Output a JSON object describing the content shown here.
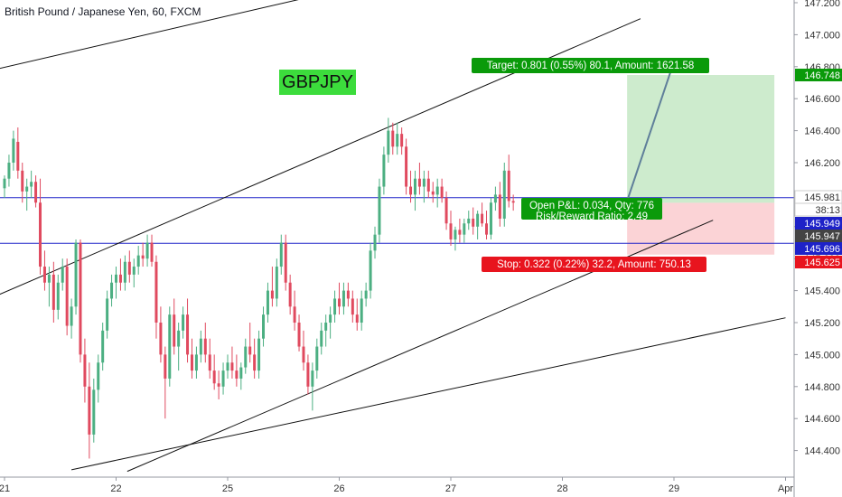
{
  "header": {
    "title": "British Pound / Japanese Yen, 60, FXCM"
  },
  "symbol_label": "GBPJPY",
  "colors": {
    "up": "#4caf82",
    "down": "#e04a5f",
    "grid_line": "#1e22c8",
    "trend_line": "#111111",
    "target_zone": "#cdebcd",
    "stop_zone": "#fbd3d6",
    "target_badge": "#0a9a0a",
    "stop_badge": "#e8141e",
    "price_badge_green": "#0a9a0a",
    "price_badge_blue": "#1e22c8",
    "price_badge_red": "#e8141e",
    "price_badge_dark": "#444444",
    "symbol_box": "#3cdc3c"
  },
  "chart_data": {
    "type": "candlestick",
    "title": "British Pound / Japanese Yen, 60, FXCM",
    "y_axis": {
      "ticks": [
        "147.200",
        "147.000",
        "146.800",
        "146.600",
        "146.400",
        "146.200",
        "146.000",
        "145.800",
        "145.600",
        "145.400",
        "145.200",
        "145.000",
        "144.800",
        "144.600",
        "144.400"
      ],
      "ylim": [
        144.26,
        147.24
      ],
      "scale": "linear"
    },
    "x_axis": {
      "ticks": [
        "21",
        "22",
        "25",
        "26",
        "27",
        "28",
        "29",
        "Apr"
      ]
    },
    "price_badges": [
      {
        "label": "146.748",
        "price": 146.748,
        "style": "green"
      },
      {
        "label": "145.981",
        "price": 145.981,
        "style": "white"
      },
      {
        "label": "38:13",
        "price": 145.981,
        "style": "white_offset"
      },
      {
        "label": "145.949",
        "price": 145.949,
        "style": "blue"
      },
      {
        "label": "145.947",
        "price": 145.947,
        "style": "dark"
      },
      {
        "label": "145.696",
        "price": 145.696,
        "style": "blue"
      },
      {
        "label": "145.625",
        "price": 145.625,
        "style": "red"
      }
    ],
    "horizontal_lines": [
      {
        "price": 145.981
      },
      {
        "price": 145.696
      }
    ],
    "trend_lines": [
      {
        "from": {
          "t": -0.1,
          "p": 146.78
        },
        "to": {
          "t": 2.7,
          "p": 147.23
        }
      },
      {
        "from": {
          "t": -0.1,
          "p": 145.36
        },
        "to": {
          "t": 5.7,
          "p": 147.1
        }
      },
      {
        "from": {
          "t": 1.1,
          "p": 144.27
        },
        "to": {
          "t": 6.35,
          "p": 145.84
        }
      },
      {
        "from": {
          "t": 0.6,
          "p": 144.28
        },
        "to": {
          "t": 7.0,
          "p": 145.23
        }
      }
    ],
    "position": {
      "type": "long",
      "entry_price": 145.949,
      "target_price": 146.748,
      "stop_price": 145.625,
      "start_t": 5.58,
      "end_t": 6.9,
      "target_label": "Target: 0.801 (0.55%) 80.1, Amount: 1621.58",
      "stop_label": "Stop: 0.322 (0.22%) 32.2, Amount: 750.13",
      "pnl_label": "Open P&L: 0.034, Qty: 776",
      "rr_label": "Risk/Reward Ratio: 2.49"
    },
    "projection_line": {
      "from": {
        "t": 5.58,
        "p": 145.96
      },
      "to": {
        "t": 5.98,
        "p": 146.79
      }
    },
    "candles": [
      {
        "t": 0.0,
        "o": 146.04,
        "h": 146.12,
        "l": 145.98,
        "c": 146.1
      },
      {
        "t": 0.04,
        "o": 146.1,
        "h": 146.25,
        "l": 146.05,
        "c": 146.2
      },
      {
        "t": 0.08,
        "o": 146.2,
        "h": 146.4,
        "l": 146.15,
        "c": 146.35
      },
      {
        "t": 0.12,
        "o": 146.33,
        "h": 146.42,
        "l": 146.1,
        "c": 146.15
      },
      {
        "t": 0.16,
        "o": 146.15,
        "h": 146.2,
        "l": 145.95,
        "c": 146.02
      },
      {
        "t": 0.2,
        "o": 146.02,
        "h": 146.1,
        "l": 145.9,
        "c": 146.05
      },
      {
        "t": 0.24,
        "o": 146.05,
        "h": 146.15,
        "l": 145.98,
        "c": 146.08
      },
      {
        "t": 0.28,
        "o": 146.08,
        "h": 146.12,
        "l": 145.92,
        "c": 145.95
      },
      {
        "t": 0.32,
        "o": 145.95,
        "h": 146.1,
        "l": 145.5,
        "c": 145.55
      },
      {
        "t": 0.36,
        "o": 145.55,
        "h": 145.65,
        "l": 145.4,
        "c": 145.45
      },
      {
        "t": 0.4,
        "o": 145.45,
        "h": 145.55,
        "l": 145.3,
        "c": 145.5
      },
      {
        "t": 0.44,
        "o": 145.5,
        "h": 145.58,
        "l": 145.2,
        "c": 145.28
      },
      {
        "t": 0.48,
        "o": 145.28,
        "h": 145.5,
        "l": 145.22,
        "c": 145.45
      },
      {
        "t": 0.52,
        "o": 145.45,
        "h": 145.6,
        "l": 145.4,
        "c": 145.55
      },
      {
        "t": 0.56,
        "o": 145.55,
        "h": 145.6,
        "l": 145.12,
        "c": 145.18
      },
      {
        "t": 0.6,
        "o": 145.18,
        "h": 145.35,
        "l": 145.1,
        "c": 145.3
      },
      {
        "t": 0.64,
        "o": 145.3,
        "h": 145.72,
        "l": 145.25,
        "c": 145.7
      },
      {
        "t": 0.68,
        "o": 145.7,
        "h": 145.72,
        "l": 144.95,
        "c": 145.0
      },
      {
        "t": 0.72,
        "o": 145.0,
        "h": 145.1,
        "l": 144.7,
        "c": 144.8
      },
      {
        "t": 0.76,
        "o": 144.8,
        "h": 144.95,
        "l": 144.35,
        "c": 144.5
      },
      {
        "t": 0.8,
        "o": 144.5,
        "h": 144.85,
        "l": 144.45,
        "c": 144.78
      },
      {
        "t": 0.84,
        "o": 144.78,
        "h": 145.0,
        "l": 144.7,
        "c": 144.95
      },
      {
        "t": 0.88,
        "o": 144.95,
        "h": 145.2,
        "l": 144.9,
        "c": 145.15
      },
      {
        "t": 0.92,
        "o": 145.15,
        "h": 145.4,
        "l": 145.1,
        "c": 145.35
      },
      {
        "t": 0.96,
        "o": 145.35,
        "h": 145.5,
        "l": 145.3,
        "c": 145.45
      },
      {
        "t": 1.0,
        "o": 145.45,
        "h": 145.55,
        "l": 145.35,
        "c": 145.5
      },
      {
        "t": 1.04,
        "o": 145.5,
        "h": 145.6,
        "l": 145.4,
        "c": 145.45
      },
      {
        "t": 1.08,
        "o": 145.45,
        "h": 145.62,
        "l": 145.4,
        "c": 145.58
      },
      {
        "t": 1.12,
        "o": 145.58,
        "h": 145.65,
        "l": 145.45,
        "c": 145.5
      },
      {
        "t": 1.16,
        "o": 145.5,
        "h": 145.6,
        "l": 145.42,
        "c": 145.55
      },
      {
        "t": 1.2,
        "o": 145.55,
        "h": 145.68,
        "l": 145.5,
        "c": 145.62
      },
      {
        "t": 1.24,
        "o": 145.62,
        "h": 145.7,
        "l": 145.55,
        "c": 145.6
      },
      {
        "t": 1.28,
        "o": 145.6,
        "h": 145.75,
        "l": 145.55,
        "c": 145.7
      },
      {
        "t": 1.32,
        "o": 145.7,
        "h": 145.75,
        "l": 145.55,
        "c": 145.58
      },
      {
        "t": 1.36,
        "o": 145.58,
        "h": 145.62,
        "l": 145.1,
        "c": 145.2
      },
      {
        "t": 1.4,
        "o": 145.2,
        "h": 145.3,
        "l": 144.95,
        "c": 145.0
      },
      {
        "t": 1.44,
        "o": 145.0,
        "h": 145.05,
        "l": 144.6,
        "c": 144.85
      },
      {
        "t": 1.48,
        "o": 144.85,
        "h": 145.3,
        "l": 144.8,
        "c": 145.25
      },
      {
        "t": 1.52,
        "o": 145.25,
        "h": 145.35,
        "l": 145.0,
        "c": 145.05
      },
      {
        "t": 1.56,
        "o": 145.05,
        "h": 145.2,
        "l": 144.9,
        "c": 145.15
      },
      {
        "t": 1.6,
        "o": 145.15,
        "h": 145.3,
        "l": 145.1,
        "c": 145.25
      },
      {
        "t": 1.64,
        "o": 145.25,
        "h": 145.35,
        "l": 144.95,
        "c": 145.0
      },
      {
        "t": 1.68,
        "o": 145.0,
        "h": 145.1,
        "l": 144.85,
        "c": 144.9
      },
      {
        "t": 1.72,
        "o": 144.9,
        "h": 145.05,
        "l": 144.85,
        "c": 145.0
      },
      {
        "t": 1.76,
        "o": 145.0,
        "h": 145.15,
        "l": 144.95,
        "c": 145.1
      },
      {
        "t": 1.8,
        "o": 145.1,
        "h": 145.2,
        "l": 144.95,
        "c": 145.0
      },
      {
        "t": 1.84,
        "o": 145.0,
        "h": 145.1,
        "l": 144.85,
        "c": 144.9
      },
      {
        "t": 1.88,
        "o": 144.9,
        "h": 145.0,
        "l": 144.78,
        "c": 144.82
      },
      {
        "t": 1.92,
        "o": 144.82,
        "h": 144.9,
        "l": 144.72,
        "c": 144.8
      },
      {
        "t": 1.96,
        "o": 144.8,
        "h": 144.95,
        "l": 144.75,
        "c": 144.9
      },
      {
        "t": 2.0,
        "o": 144.9,
        "h": 145.0,
        "l": 144.85,
        "c": 144.95
      },
      {
        "t": 2.04,
        "o": 144.95,
        "h": 145.05,
        "l": 144.85,
        "c": 144.9
      },
      {
        "t": 2.08,
        "o": 144.9,
        "h": 145.0,
        "l": 144.8,
        "c": 144.85
      },
      {
        "t": 2.12,
        "o": 144.85,
        "h": 144.95,
        "l": 144.78,
        "c": 144.92
      },
      {
        "t": 2.16,
        "o": 144.92,
        "h": 145.1,
        "l": 144.88,
        "c": 145.05
      },
      {
        "t": 2.2,
        "o": 145.05,
        "h": 145.2,
        "l": 144.95,
        "c": 145.0
      },
      {
        "t": 2.24,
        "o": 145.0,
        "h": 145.1,
        "l": 144.85,
        "c": 144.9
      },
      {
        "t": 2.28,
        "o": 144.9,
        "h": 145.15,
        "l": 144.85,
        "c": 145.1
      },
      {
        "t": 2.32,
        "o": 145.1,
        "h": 145.3,
        "l": 145.05,
        "c": 145.25
      },
      {
        "t": 2.36,
        "o": 145.25,
        "h": 145.45,
        "l": 145.2,
        "c": 145.4
      },
      {
        "t": 2.4,
        "o": 145.4,
        "h": 145.55,
        "l": 145.3,
        "c": 145.35
      },
      {
        "t": 2.44,
        "o": 145.35,
        "h": 145.6,
        "l": 145.3,
        "c": 145.55
      },
      {
        "t": 2.48,
        "o": 145.55,
        "h": 145.75,
        "l": 145.5,
        "c": 145.7
      },
      {
        "t": 2.52,
        "o": 145.7,
        "h": 145.75,
        "l": 145.4,
        "c": 145.45
      },
      {
        "t": 2.56,
        "o": 145.45,
        "h": 145.5,
        "l": 145.25,
        "c": 145.3
      },
      {
        "t": 2.6,
        "o": 145.3,
        "h": 145.4,
        "l": 145.15,
        "c": 145.2
      },
      {
        "t": 2.64,
        "o": 145.2,
        "h": 145.25,
        "l": 145.02,
        "c": 145.05
      },
      {
        "t": 2.68,
        "o": 145.05,
        "h": 145.15,
        "l": 144.9,
        "c": 144.95
      },
      {
        "t": 2.72,
        "o": 144.95,
        "h": 145.0,
        "l": 144.75,
        "c": 144.8
      },
      {
        "t": 2.76,
        "o": 144.8,
        "h": 144.95,
        "l": 144.65,
        "c": 144.9
      },
      {
        "t": 2.8,
        "o": 144.9,
        "h": 145.1,
        "l": 144.85,
        "c": 145.05
      },
      {
        "t": 2.84,
        "o": 145.05,
        "h": 145.2,
        "l": 145.0,
        "c": 145.15
      },
      {
        "t": 2.88,
        "o": 145.15,
        "h": 145.25,
        "l": 145.05,
        "c": 145.2
      },
      {
        "t": 2.92,
        "o": 145.2,
        "h": 145.3,
        "l": 145.1,
        "c": 145.25
      },
      {
        "t": 2.96,
        "o": 145.25,
        "h": 145.4,
        "l": 145.2,
        "c": 145.35
      },
      {
        "t": 3.0,
        "o": 145.35,
        "h": 145.45,
        "l": 145.25,
        "c": 145.3
      },
      {
        "t": 3.04,
        "o": 145.3,
        "h": 145.45,
        "l": 145.25,
        "c": 145.4
      },
      {
        "t": 3.08,
        "o": 145.4,
        "h": 145.45,
        "l": 145.3,
        "c": 145.35
      },
      {
        "t": 3.12,
        "o": 145.35,
        "h": 145.4,
        "l": 145.2,
        "c": 145.25
      },
      {
        "t": 3.16,
        "o": 145.25,
        "h": 145.35,
        "l": 145.15,
        "c": 145.2
      },
      {
        "t": 3.2,
        "o": 145.2,
        "h": 145.4,
        "l": 145.15,
        "c": 145.35
      },
      {
        "t": 3.24,
        "o": 145.35,
        "h": 145.45,
        "l": 145.3,
        "c": 145.4
      },
      {
        "t": 3.28,
        "o": 145.4,
        "h": 145.7,
        "l": 145.35,
        "c": 145.65
      },
      {
        "t": 3.32,
        "o": 145.65,
        "h": 145.8,
        "l": 145.6,
        "c": 145.75
      },
      {
        "t": 3.36,
        "o": 145.75,
        "h": 146.1,
        "l": 145.7,
        "c": 146.05
      },
      {
        "t": 3.4,
        "o": 146.05,
        "h": 146.3,
        "l": 146.0,
        "c": 146.25
      },
      {
        "t": 3.44,
        "o": 146.25,
        "h": 146.48,
        "l": 146.2,
        "c": 146.4
      },
      {
        "t": 3.48,
        "o": 146.4,
        "h": 146.45,
        "l": 146.25,
        "c": 146.3
      },
      {
        "t": 3.52,
        "o": 146.3,
        "h": 146.45,
        "l": 146.25,
        "c": 146.38
      },
      {
        "t": 3.56,
        "o": 146.38,
        "h": 146.42,
        "l": 146.25,
        "c": 146.3
      },
      {
        "t": 3.6,
        "o": 146.3,
        "h": 146.35,
        "l": 146.0,
        "c": 146.05
      },
      {
        "t": 3.64,
        "o": 146.05,
        "h": 146.15,
        "l": 145.95,
        "c": 146.0
      },
      {
        "t": 3.68,
        "o": 146.0,
        "h": 146.15,
        "l": 145.9,
        "c": 146.1
      },
      {
        "t": 3.72,
        "o": 146.1,
        "h": 146.2,
        "l": 146.0,
        "c": 146.05
      },
      {
        "t": 3.76,
        "o": 146.05,
        "h": 146.15,
        "l": 145.95,
        "c": 146.1
      },
      {
        "t": 3.8,
        "o": 146.1,
        "h": 146.15,
        "l": 145.98,
        "c": 146.02
      },
      {
        "t": 3.84,
        "o": 146.02,
        "h": 146.08,
        "l": 145.95,
        "c": 146.0
      },
      {
        "t": 3.88,
        "o": 146.0,
        "h": 146.1,
        "l": 145.92,
        "c": 146.05
      },
      {
        "t": 3.92,
        "o": 146.05,
        "h": 146.1,
        "l": 145.95,
        "c": 145.98
      },
      {
        "t": 3.96,
        "o": 145.98,
        "h": 146.02,
        "l": 145.78,
        "c": 145.82
      },
      {
        "t": 4.0,
        "o": 145.82,
        "h": 145.9,
        "l": 145.68,
        "c": 145.72
      },
      {
        "t": 4.04,
        "o": 145.72,
        "h": 145.8,
        "l": 145.65,
        "c": 145.78
      },
      {
        "t": 4.08,
        "o": 145.78,
        "h": 145.85,
        "l": 145.7,
        "c": 145.75
      },
      {
        "t": 4.12,
        "o": 145.75,
        "h": 145.85,
        "l": 145.7,
        "c": 145.82
      },
      {
        "t": 4.16,
        "o": 145.82,
        "h": 145.9,
        "l": 145.78,
        "c": 145.85
      },
      {
        "t": 4.2,
        "o": 145.85,
        "h": 145.92,
        "l": 145.75,
        "c": 145.8
      },
      {
        "t": 4.24,
        "o": 145.8,
        "h": 145.9,
        "l": 145.72,
        "c": 145.88
      },
      {
        "t": 4.28,
        "o": 145.88,
        "h": 145.95,
        "l": 145.8,
        "c": 145.82
      },
      {
        "t": 4.32,
        "o": 145.82,
        "h": 145.9,
        "l": 145.72,
        "c": 145.75
      },
      {
        "t": 4.36,
        "o": 145.75,
        "h": 145.98,
        "l": 145.72,
        "c": 145.95
      },
      {
        "t": 4.4,
        "o": 145.95,
        "h": 146.05,
        "l": 145.9,
        "c": 146.0
      },
      {
        "t": 4.44,
        "o": 146.0,
        "h": 146.08,
        "l": 145.8,
        "c": 145.85
      },
      {
        "t": 4.48,
        "o": 145.85,
        "h": 146.2,
        "l": 145.8,
        "c": 146.15
      },
      {
        "t": 4.52,
        "o": 146.15,
        "h": 146.25,
        "l": 145.92,
        "c": 145.96
      },
      {
        "t": 4.56,
        "o": 145.96,
        "h": 146.0,
        "l": 145.9,
        "c": 145.95
      }
    ]
  }
}
